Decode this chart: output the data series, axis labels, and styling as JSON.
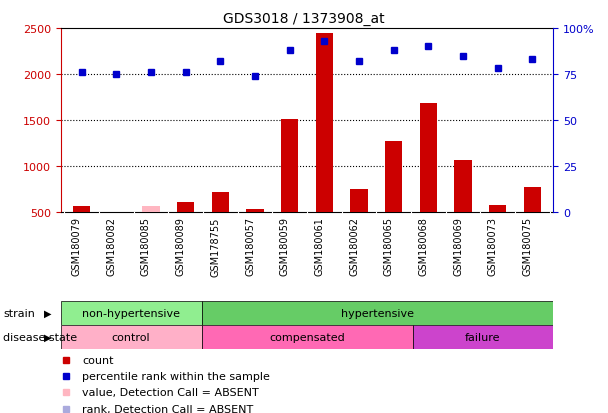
{
  "title": "GDS3018 / 1373908_at",
  "samples": [
    "GSM180079",
    "GSM180082",
    "GSM180085",
    "GSM180089",
    "GSM178755",
    "GSM180057",
    "GSM180059",
    "GSM180061",
    "GSM180062",
    "GSM180065",
    "GSM180068",
    "GSM180069",
    "GSM180073",
    "GSM180075"
  ],
  "counts": [
    560,
    490,
    560,
    610,
    720,
    530,
    1510,
    2440,
    750,
    1270,
    1680,
    1060,
    570,
    770
  ],
  "counts_absent": [
    false,
    false,
    true,
    false,
    false,
    false,
    false,
    false,
    false,
    false,
    false,
    false,
    false,
    false
  ],
  "percentile_ranks": [
    76,
    75,
    76,
    76,
    82,
    74,
    88,
    93,
    82,
    88,
    90,
    85,
    78,
    83
  ],
  "percentile_absent": [
    false,
    false,
    false,
    false,
    false,
    false,
    false,
    false,
    false,
    false,
    false,
    false,
    false,
    false
  ],
  "ylim_left": [
    500,
    2500
  ],
  "ylim_right": [
    0,
    100
  ],
  "yticks_left": [
    500,
    1000,
    1500,
    2000,
    2500
  ],
  "yticks_right": [
    0,
    25,
    50,
    75,
    100
  ],
  "ytick_labels_right": [
    "0",
    "25",
    "50",
    "75",
    "100%"
  ],
  "strain_groups": [
    {
      "label": "non-hypertensive",
      "start": 0,
      "end": 4,
      "color": "#90EE90"
    },
    {
      "label": "hypertensive",
      "start": 4,
      "end": 14,
      "color": "#66CC66"
    }
  ],
  "disease_groups": [
    {
      "label": "control",
      "start": 0,
      "end": 4,
      "color": "#FFB0C8"
    },
    {
      "label": "compensated",
      "start": 4,
      "end": 10,
      "color": "#FF69B4"
    },
    {
      "label": "failure",
      "start": 10,
      "end": 14,
      "color": "#CC44CC"
    }
  ],
  "bar_color_normal": "#CC0000",
  "bar_color_absent": "#FFB6C1",
  "dot_color_normal": "#0000CC",
  "dot_color_absent": "#AAAADD",
  "background_color": "#FFFFFF",
  "axis_color_left": "#CC0000",
  "axis_color_right": "#0000CC",
  "xlabel_bg": "#CCCCCC",
  "legend_items": [
    {
      "label": "count",
      "color": "#CC0000"
    },
    {
      "label": "percentile rank within the sample",
      "color": "#0000CC"
    },
    {
      "label": "value, Detection Call = ABSENT",
      "color": "#FFB6C1"
    },
    {
      "label": "rank, Detection Call = ABSENT",
      "color": "#AAAADD"
    }
  ]
}
